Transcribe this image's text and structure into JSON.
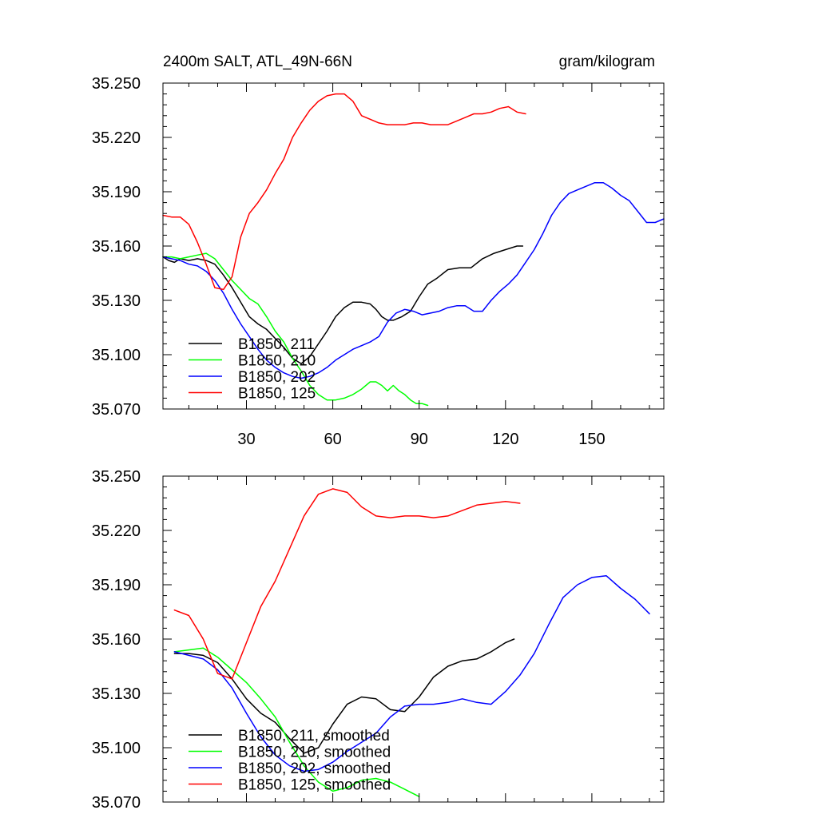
{
  "colors": {
    "B1850_211": "#000000",
    "B1850_210": "#00ff00",
    "B1850_202": "#0000ff",
    "B1850_125": "#ff0000"
  },
  "chart_data": [
    {
      "type": "line",
      "title": "2400m SALT, ATL_49N-66N",
      "units": "gram/kilogram",
      "xlabel": "",
      "ylabel": "",
      "xlim": [
        1,
        175
      ],
      "ylim": [
        35.07,
        35.25
      ],
      "xticks": [
        30,
        60,
        90,
        120,
        150
      ],
      "xtick_labels": [
        "30",
        "60",
        "90",
        "120",
        "150"
      ],
      "yticks": [
        35.07,
        35.1,
        35.13,
        35.16,
        35.19,
        35.22,
        35.25
      ],
      "ytick_labels": [
        "35.070",
        "35.100",
        "35.130",
        "35.160",
        "35.190",
        "35.220",
        "35.250"
      ],
      "legend_position": "bottom-left",
      "series": [
        {
          "name": "B1850, 211",
          "color": "#000000",
          "x": [
            1,
            3,
            5,
            7,
            10,
            13,
            16,
            19,
            22,
            25,
            28,
            31,
            34,
            37,
            40,
            43,
            46,
            49,
            52,
            55,
            58,
            61,
            64,
            67,
            70,
            73,
            75,
            77,
            79,
            81,
            84,
            87,
            90,
            93,
            96,
            100,
            104,
            108,
            112,
            116,
            120,
            124,
            126
          ],
          "y": [
            35.154,
            35.152,
            35.151,
            35.153,
            35.152,
            35.153,
            35.152,
            35.15,
            35.144,
            35.137,
            35.129,
            35.121,
            35.117,
            35.114,
            35.109,
            35.104,
            35.098,
            35.095,
            35.099,
            35.106,
            35.113,
            35.121,
            35.126,
            35.129,
            35.129,
            35.128,
            35.125,
            35.121,
            35.119,
            35.119,
            35.121,
            35.124,
            35.132,
            35.139,
            35.142,
            35.147,
            35.148,
            35.148,
            35.153,
            35.156,
            35.158,
            35.16,
            35.16
          ]
        },
        {
          "name": "B1850, 210",
          "color": "#00ff00",
          "x": [
            1,
            4,
            7,
            10,
            13,
            16,
            19,
            22,
            25,
            28,
            31,
            34,
            37,
            40,
            43,
            46,
            49,
            52,
            55,
            58,
            61,
            64,
            67,
            70,
            73,
            75,
            77,
            79,
            81,
            83,
            85,
            87,
            89,
            91,
            93
          ],
          "y": [
            35.154,
            35.154,
            35.153,
            35.154,
            35.155,
            35.156,
            35.153,
            35.147,
            35.141,
            35.136,
            35.131,
            35.128,
            35.121,
            35.113,
            35.107,
            35.098,
            35.091,
            35.083,
            35.078,
            35.075,
            35.075,
            35.076,
            35.078,
            35.081,
            35.085,
            35.085,
            35.083,
            35.08,
            35.083,
            35.08,
            35.078,
            35.075,
            35.073,
            35.073,
            35.072
          ]
        },
        {
          "name": "B1850, 202",
          "color": "#0000ff",
          "x": [
            1,
            4,
            7,
            10,
            13,
            16,
            19,
            22,
            25,
            28,
            31,
            34,
            37,
            40,
            43,
            46,
            49,
            52,
            55,
            58,
            61,
            64,
            67,
            70,
            73,
            76,
            79,
            82,
            85,
            88,
            91,
            94,
            97,
            100,
            103,
            106,
            109,
            112,
            115,
            118,
            121,
            124,
            127,
            130,
            133,
            136,
            139,
            142,
            145,
            148,
            151,
            154,
            157,
            160,
            163,
            166,
            169,
            172,
            175
          ],
          "y": [
            35.154,
            35.153,
            35.152,
            35.15,
            35.149,
            35.146,
            35.141,
            35.134,
            35.125,
            35.117,
            35.11,
            35.103,
            35.097,
            35.093,
            35.09,
            35.088,
            35.087,
            35.088,
            35.09,
            35.093,
            35.097,
            35.1,
            35.103,
            35.105,
            35.107,
            35.11,
            35.118,
            35.123,
            35.125,
            35.124,
            35.122,
            35.123,
            35.124,
            35.126,
            35.127,
            35.127,
            35.124,
            35.124,
            35.13,
            35.135,
            35.139,
            35.144,
            35.151,
            35.158,
            35.167,
            35.177,
            35.184,
            35.189,
            35.191,
            35.193,
            35.195,
            35.195,
            35.192,
            35.188,
            35.185,
            35.179,
            35.173,
            35.173,
            35.175
          ]
        },
        {
          "name": "B1850, 125",
          "color": "#ff0000",
          "x": [
            1,
            4,
            7,
            10,
            13,
            16,
            19,
            22,
            25,
            28,
            31,
            34,
            37,
            40,
            43,
            46,
            49,
            52,
            55,
            58,
            61,
            64,
            67,
            70,
            73,
            76,
            79,
            82,
            85,
            88,
            91,
            94,
            97,
            100,
            103,
            106,
            109,
            112,
            115,
            118,
            121,
            124,
            127
          ],
          "y": [
            35.177,
            35.176,
            35.176,
            35.172,
            35.162,
            35.15,
            35.137,
            35.136,
            35.143,
            35.165,
            35.178,
            35.184,
            35.191,
            35.2,
            35.208,
            35.22,
            35.228,
            35.235,
            35.24,
            35.243,
            35.244,
            35.244,
            35.24,
            35.232,
            35.23,
            35.228,
            35.227,
            35.227,
            35.227,
            35.228,
            35.228,
            35.227,
            35.227,
            35.227,
            35.229,
            35.231,
            35.233,
            35.233,
            35.234,
            35.236,
            35.237,
            35.234,
            35.233
          ]
        }
      ]
    },
    {
      "type": "line",
      "title": "",
      "xlabel": "",
      "ylabel": "",
      "xlim": [
        1,
        175
      ],
      "ylim": [
        35.07,
        35.25
      ],
      "xticks": [
        30,
        60,
        90,
        120,
        150
      ],
      "yticks": [
        35.07,
        35.1,
        35.13,
        35.16,
        35.19,
        35.22,
        35.25
      ],
      "ytick_labels": [
        "35.070",
        "35.100",
        "35.130",
        "35.160",
        "35.190",
        "35.220",
        "35.250"
      ],
      "legend_position": "bottom-left",
      "series": [
        {
          "name": "B1850, 211, smoothed",
          "color": "#000000",
          "x": [
            5,
            10,
            15,
            20,
            25,
            30,
            35,
            40,
            45,
            50,
            55,
            60,
            65,
            70,
            75,
            80,
            85,
            90,
            95,
            100,
            105,
            110,
            115,
            120,
            123
          ],
          "y": [
            35.152,
            35.152,
            35.151,
            35.147,
            35.138,
            35.127,
            35.119,
            35.114,
            35.105,
            35.097,
            35.1,
            35.113,
            35.124,
            35.128,
            35.127,
            35.121,
            35.12,
            35.128,
            35.139,
            35.145,
            35.148,
            35.149,
            35.153,
            35.158,
            35.16
          ]
        },
        {
          "name": "B1850, 210, smoothed",
          "color": "#00ff00",
          "x": [
            5,
            10,
            15,
            20,
            25,
            30,
            35,
            40,
            45,
            50,
            55,
            60,
            65,
            70,
            75,
            80,
            85,
            90
          ],
          "y": [
            35.153,
            35.154,
            35.155,
            35.15,
            35.143,
            35.136,
            35.127,
            35.117,
            35.103,
            35.09,
            35.081,
            35.076,
            35.078,
            35.082,
            35.083,
            35.081,
            35.077,
            35.073
          ]
        },
        {
          "name": "B1850, 202, smoothed",
          "color": "#0000ff",
          "x": [
            5,
            10,
            15,
            20,
            25,
            30,
            35,
            40,
            45,
            50,
            55,
            60,
            65,
            70,
            75,
            80,
            85,
            90,
            95,
            100,
            105,
            110,
            115,
            120,
            125,
            130,
            135,
            140,
            145,
            150,
            155,
            160,
            165,
            170
          ],
          "y": [
            35.153,
            35.151,
            35.149,
            35.143,
            35.133,
            35.119,
            35.106,
            35.096,
            35.09,
            35.087,
            35.088,
            35.092,
            35.098,
            35.103,
            35.108,
            35.117,
            35.123,
            35.124,
            35.124,
            35.125,
            35.127,
            35.125,
            35.124,
            35.131,
            35.14,
            35.152,
            35.168,
            35.183,
            35.19,
            35.194,
            35.195,
            35.188,
            35.182,
            35.174
          ]
        },
        {
          "name": "B1850, 125, smoothed",
          "color": "#ff0000",
          "x": [
            5,
            10,
            15,
            20,
            25,
            30,
            35,
            40,
            45,
            50,
            55,
            60,
            65,
            70,
            75,
            80,
            85,
            90,
            95,
            100,
            105,
            110,
            115,
            120,
            125
          ],
          "y": [
            35.176,
            35.173,
            35.16,
            35.141,
            35.138,
            35.158,
            35.178,
            35.192,
            35.21,
            35.228,
            35.24,
            35.243,
            35.241,
            35.233,
            35.228,
            35.227,
            35.228,
            35.228,
            35.227,
            35.228,
            35.231,
            35.234,
            35.235,
            35.236,
            35.235
          ]
        }
      ]
    }
  ]
}
